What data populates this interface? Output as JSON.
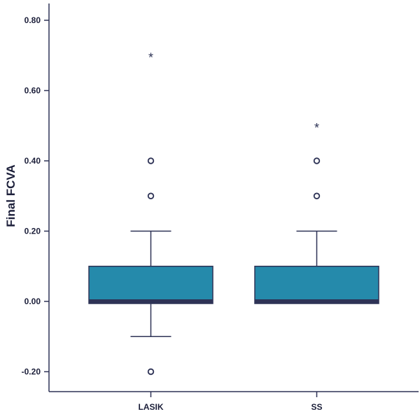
{
  "chart_data": {
    "type": "boxplot",
    "title": "",
    "xlabel": "",
    "ylabel": "Final FCVA",
    "ylim": [
      -0.26,
      0.85
    ],
    "yticks": [
      0.8,
      0.6,
      0.4,
      0.2,
      0.0,
      -0.2
    ],
    "ytick_labels": [
      "0.80",
      "0.60",
      "0.40",
      "0.20",
      "0.00",
      "-0.20"
    ],
    "categories": [
      "LASIK",
      "SS"
    ],
    "boxes": [
      {
        "name": "LASIK",
        "whisker_low": -0.1,
        "q1": 0.0,
        "median": 0.0,
        "q3": 0.1,
        "whisker_high": 0.2,
        "outliers": [
          0.3,
          0.4,
          -0.2
        ],
        "extremes": [
          0.7
        ]
      },
      {
        "name": "SS",
        "whisker_low": 0.0,
        "q1": 0.0,
        "median": 0.0,
        "q3": 0.1,
        "whisker_high": 0.2,
        "outliers": [
          0.3,
          0.4
        ],
        "extremes": [
          0.5
        ]
      }
    ],
    "colors": {
      "box": "#258aab",
      "line": "#2e3356"
    }
  }
}
